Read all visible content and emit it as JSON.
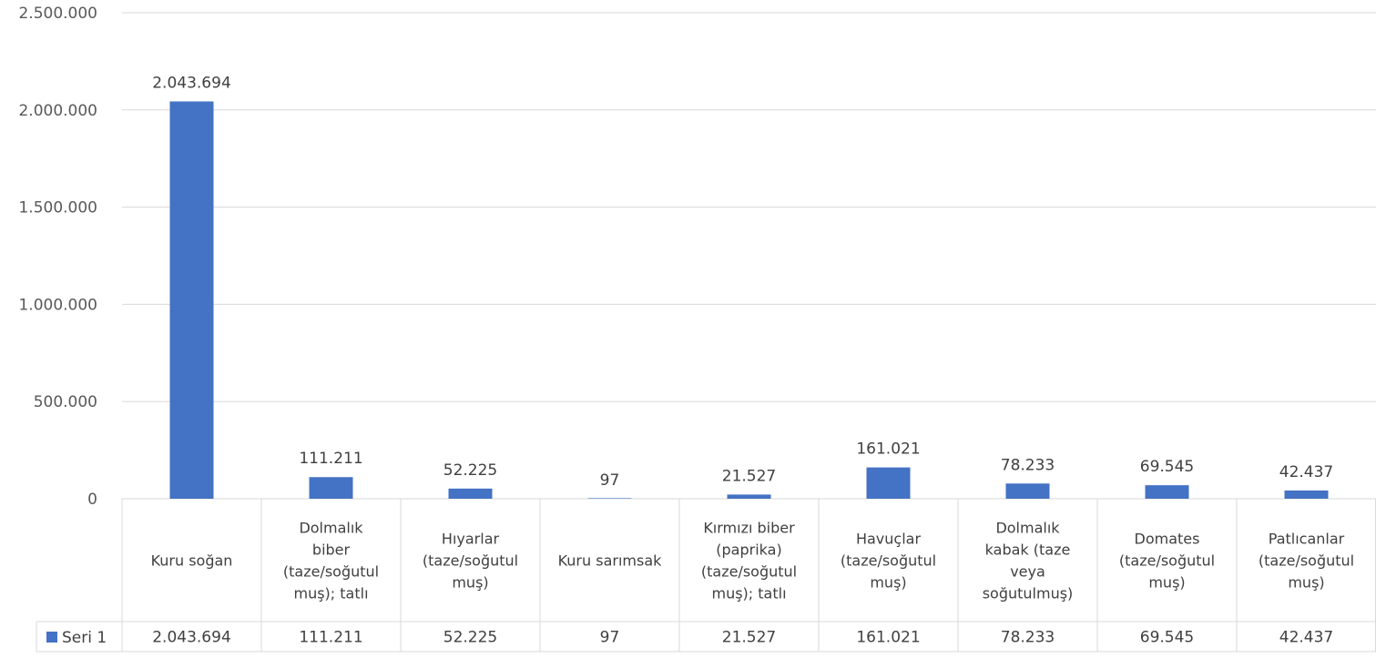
{
  "chart_data": {
    "type": "bar",
    "categories": [
      "Kuru soğan",
      "Dolmalık biber (taze/soğutul muş); tatlı",
      "Hıyarlar (taze/soğutul muş)",
      "Kuru sarımsak",
      "Kırmızı biber (paprika) (taze/soğutul muş); tatlı",
      "Havuçlar (taze/soğutul muş)",
      "Dolmalık kabak (taze veya soğutulmuş)",
      "Domates (taze/soğutul muş)",
      "Patlıcanlar (taze/soğutul muş)"
    ],
    "category_lines": [
      [
        "Kuru soğan"
      ],
      [
        "Dolmalık",
        "biber",
        "(taze/soğutul",
        "muş); tatlı"
      ],
      [
        "Hıyarlar",
        "(taze/soğutul",
        "muş)"
      ],
      [
        "Kuru sarımsak"
      ],
      [
        "Kırmızı biber",
        "(paprika)",
        "(taze/soğutul",
        "muş); tatlı"
      ],
      [
        "Havuçlar",
        "(taze/soğutul",
        "muş)"
      ],
      [
        "Dolmalık",
        "kabak (taze",
        "veya",
        "soğutulmuş)"
      ],
      [
        "Domates",
        "(taze/soğutul",
        "muş)"
      ],
      [
        "Patlıcanlar",
        "(taze/soğutul",
        "muş)"
      ]
    ],
    "series": [
      {
        "name": "Seri 1",
        "values": [
          2043694,
          111211,
          52225,
          97,
          21527,
          161021,
          78233,
          69545,
          42437
        ],
        "labels": [
          "2.043.694",
          "111.211",
          "52.225",
          "97",
          "21.527",
          "161.021",
          "78.233",
          "69.545",
          "42.437"
        ],
        "color": "#4472C4"
      }
    ],
    "y_ticks": [
      {
        "value": 0,
        "label": "0"
      },
      {
        "value": 500000,
        "label": "500.000"
      },
      {
        "value": 1000000,
        "label": "1.000.000"
      },
      {
        "value": 1500000,
        "label": "1.500.000"
      },
      {
        "value": 2000000,
        "label": "2.000.000"
      },
      {
        "value": 2500000,
        "label": "2.500.000"
      }
    ],
    "ylim": [
      0,
      2500000
    ],
    "title": "",
    "xlabel": "",
    "ylabel": "",
    "grid": true,
    "legend": "data-table",
    "data_table": true,
    "colors": {
      "bar": "#4472C4",
      "grid": "#D9D9D9",
      "text": "#404040"
    }
  }
}
